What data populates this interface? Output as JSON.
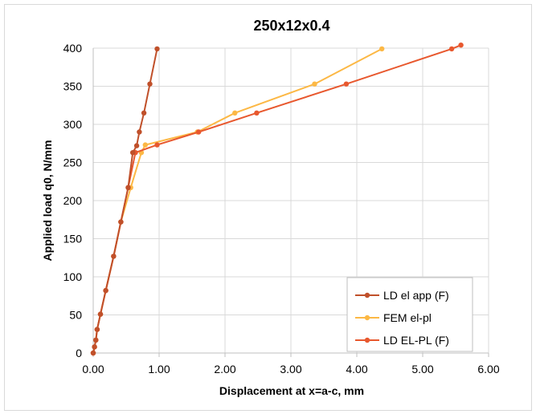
{
  "chart_data": {
    "type": "line",
    "title": "250x12x0.4",
    "xlabel": "Displacement at x=a-c, mm",
    "ylabel": "Applied load q0, N/mm",
    "xlim": [
      0,
      6
    ],
    "ylim": [
      0,
      400
    ],
    "x_ticks": [
      "0.00",
      "1.00",
      "2.00",
      "3.00",
      "4.00",
      "5.00",
      "6.00"
    ],
    "y_ticks": [
      "0",
      "50",
      "100",
      "150",
      "200",
      "250",
      "300",
      "350",
      "400"
    ],
    "grid": true,
    "legend_position": "bottom-right",
    "series": [
      {
        "name": "LD el app (F)",
        "color": "#c0502a",
        "points": [
          [
            0,
            0
          ],
          [
            0.02,
            8
          ],
          [
            0.04,
            17
          ],
          [
            0.06,
            31
          ],
          [
            0.11,
            51
          ],
          [
            0.19,
            82
          ],
          [
            0.31,
            127
          ],
          [
            0.42,
            172
          ],
          [
            0.53,
            217
          ],
          [
            0.6,
            263
          ],
          [
            0.66,
            272
          ],
          [
            0.7,
            290
          ],
          [
            0.77,
            315
          ],
          [
            0.86,
            353
          ],
          [
            0.97,
            399
          ]
        ]
      },
      {
        "name": "FEM el-pl",
        "color": "#fcb845",
        "points": [
          [
            0,
            0
          ],
          [
            0.02,
            8
          ],
          [
            0.04,
            17
          ],
          [
            0.06,
            31
          ],
          [
            0.11,
            51
          ],
          [
            0.19,
            82
          ],
          [
            0.31,
            127
          ],
          [
            0.42,
            172
          ],
          [
            0.57,
            217
          ],
          [
            0.73,
            263
          ],
          [
            0.79,
            273
          ],
          [
            1.58,
            290
          ],
          [
            2.15,
            315
          ],
          [
            3.36,
            353
          ],
          [
            4.38,
            399
          ]
        ]
      },
      {
        "name": "LD EL-PL (F)",
        "color": "#e8582e",
        "points": [
          [
            0,
            0
          ],
          [
            0.02,
            8
          ],
          [
            0.04,
            17
          ],
          [
            0.06,
            31
          ],
          [
            0.11,
            51
          ],
          [
            0.19,
            82
          ],
          [
            0.31,
            127
          ],
          [
            0.42,
            172
          ],
          [
            0.53,
            217
          ],
          [
            0.64,
            263
          ],
          [
            0.97,
            273
          ],
          [
            1.6,
            290
          ],
          [
            2.48,
            315
          ],
          [
            3.84,
            353
          ],
          [
            5.44,
            399
          ],
          [
            5.58,
            404
          ]
        ]
      }
    ]
  }
}
